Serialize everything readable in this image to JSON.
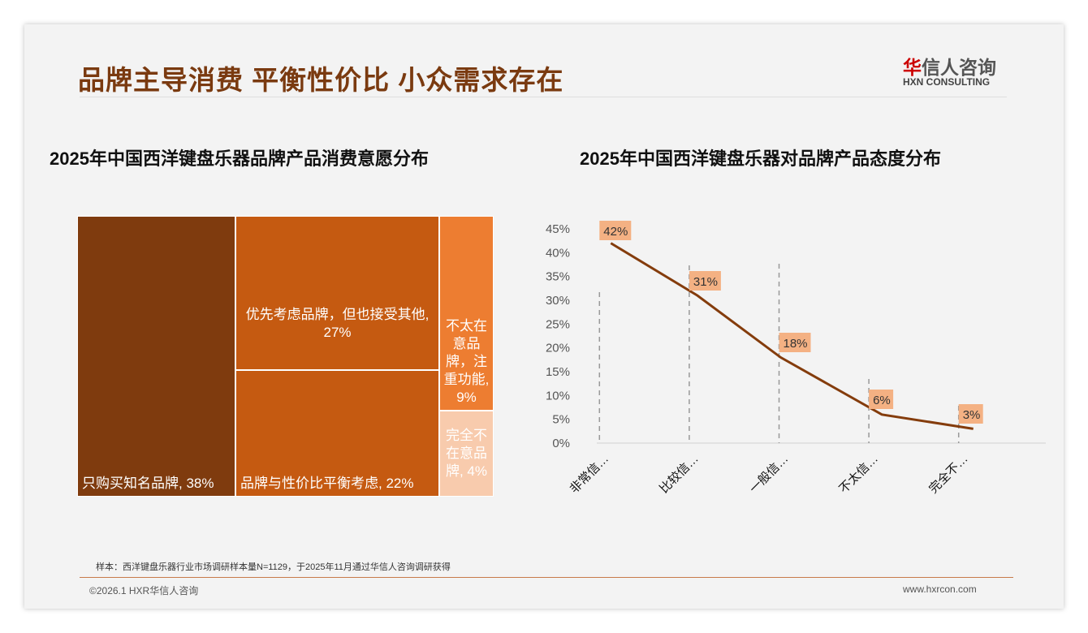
{
  "header": {
    "title": "品牌主导消费 平衡性价比 小众需求存在",
    "logo_cn_red": "华",
    "logo_cn": "信人咨询",
    "logo_en": "HXN CONSULTING"
  },
  "chart_data": [
    {
      "type": "treemap",
      "title": "2025年中国西洋键盘乐器品牌产品消费意愿分布",
      "items": [
        {
          "label": "只购买知名品牌, 38%",
          "value": 38,
          "color": "#7f3b0e"
        },
        {
          "label": "优先考虑品牌，但也接受其他, 27%",
          "value": 27,
          "color": "#c55a11"
        },
        {
          "label": "品牌与性价比平衡考虑, 22%",
          "value": 22,
          "color": "#c55a11"
        },
        {
          "label": "不太在意品牌，注重功能, 9%",
          "value": 9,
          "color": "#ed7d31"
        },
        {
          "label": "完全不在意品牌, 4%",
          "value": 4,
          "color": "#f8cbad"
        }
      ]
    },
    {
      "type": "line",
      "title": "2025年中国西洋键盘乐器对品牌产品态度分布",
      "categories": [
        "非常信…",
        "比较信…",
        "一般信…",
        "不太信…",
        "完全不…"
      ],
      "values": [
        42,
        31,
        18,
        6,
        3
      ],
      "data_labels": [
        "42%",
        "31%",
        "18%",
        "6%",
        "3%"
      ],
      "yticks": [
        "0%",
        "5%",
        "10%",
        "15%",
        "20%",
        "25%",
        "30%",
        "35%",
        "40%",
        "45%"
      ],
      "ylim": [
        0,
        45
      ],
      "line_color": "#843c0c",
      "label_bg": "#f4b183"
    }
  ],
  "footer": {
    "note": "样本：西洋键盘乐器行业市场调研样本量N=1129，于2025年11月通过华信人咨询调研获得",
    "copyright": "©2026.1 HXR华信人咨询",
    "url": "www.hxrcon.com"
  }
}
